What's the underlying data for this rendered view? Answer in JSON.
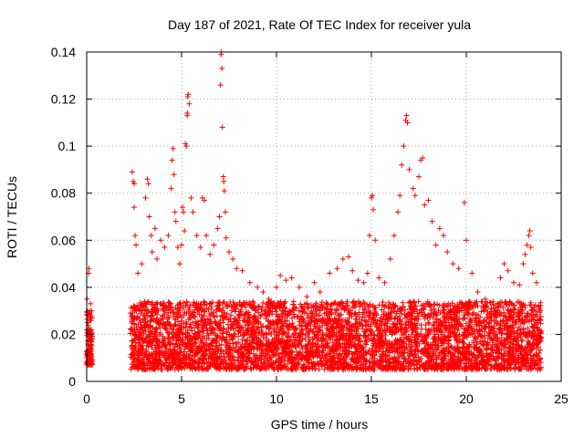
{
  "chart_data": {
    "type": "scatter",
    "title": "Day 187 of 2021, Rate Of TEC Index for receiver yula",
    "xlabel": "GPS time / hours",
    "ylabel": "ROTI / TECUs",
    "xlim": [
      0,
      25
    ],
    "ylim": [
      0,
      0.14
    ],
    "x_ticks": [
      0,
      5,
      10,
      15,
      20,
      25
    ],
    "x_tick_labels": [
      "0",
      "5",
      "10",
      "15",
      "20",
      "25"
    ],
    "y_ticks": [
      0,
      0.02,
      0.04,
      0.06,
      0.08,
      0.1,
      0.12,
      0.14
    ],
    "y_tick_labels": [
      "0",
      "0.02",
      "0.04",
      "0.06",
      "0.08",
      "0.1",
      "0.12",
      "0.14"
    ],
    "grid": true,
    "marker": "+",
    "color": "#ff0000",
    "legend": "none",
    "series": [
      {
        "points": [
          [
            0.02,
            0.035
          ],
          [
            0.05,
            0.028
          ],
          [
            0.1,
            0.046
          ],
          [
            0.12,
            0.048
          ],
          [
            0.15,
            0.022
          ],
          [
            0.18,
            0.03
          ],
          [
            0.2,
            0.033
          ],
          [
            0.25,
            0.02
          ],
          [
            2.4,
            0.089
          ],
          [
            2.45,
            0.085
          ],
          [
            2.5,
            0.084
          ],
          [
            2.5,
            0.074
          ],
          [
            2.55,
            0.062
          ],
          [
            2.6,
            0.058
          ],
          [
            2.7,
            0.046
          ],
          [
            2.9,
            0.05
          ],
          [
            3.1,
            0.078
          ],
          [
            3.2,
            0.086
          ],
          [
            3.25,
            0.084
          ],
          [
            3.3,
            0.07
          ],
          [
            3.4,
            0.062
          ],
          [
            3.45,
            0.055
          ],
          [
            3.6,
            0.065
          ],
          [
            3.7,
            0.052
          ],
          [
            3.9,
            0.06
          ],
          [
            4.1,
            0.057
          ],
          [
            4.3,
            0.062
          ],
          [
            4.45,
            0.082
          ],
          [
            4.5,
            0.094
          ],
          [
            4.55,
            0.099
          ],
          [
            4.6,
            0.088
          ],
          [
            4.65,
            0.072
          ],
          [
            4.7,
            0.068
          ],
          [
            4.8,
            0.057
          ],
          [
            4.9,
            0.05
          ],
          [
            5.0,
            0.058
          ],
          [
            5.05,
            0.074
          ],
          [
            5.1,
            0.072
          ],
          [
            5.15,
            0.064
          ],
          [
            5.2,
            0.101
          ],
          [
            5.25,
            0.1
          ],
          [
            5.3,
            0.113
          ],
          [
            5.3,
            0.114
          ],
          [
            5.32,
            0.121
          ],
          [
            5.35,
            0.122
          ],
          [
            5.4,
            0.118
          ],
          [
            5.5,
            0.078
          ],
          [
            5.6,
            0.072
          ],
          [
            5.8,
            0.062
          ],
          [
            6.0,
            0.057
          ],
          [
            6.1,
            0.078
          ],
          [
            6.2,
            0.077
          ],
          [
            6.3,
            0.062
          ],
          [
            6.5,
            0.054
          ],
          [
            6.7,
            0.058
          ],
          [
            6.9,
            0.065
          ],
          [
            7.0,
            0.07
          ],
          [
            7.05,
            0.126
          ],
          [
            7.08,
            0.139
          ],
          [
            7.1,
            0.14
          ],
          [
            7.12,
            0.133
          ],
          [
            7.15,
            0.108
          ],
          [
            7.2,
            0.087
          ],
          [
            7.22,
            0.085
          ],
          [
            7.25,
            0.081
          ],
          [
            7.3,
            0.072
          ],
          [
            7.35,
            0.061
          ],
          [
            7.5,
            0.055
          ],
          [
            7.7,
            0.052
          ],
          [
            7.9,
            0.048
          ],
          [
            8.2,
            0.047
          ],
          [
            8.6,
            0.042
          ],
          [
            9.0,
            0.04
          ],
          [
            9.3,
            0.038
          ],
          [
            9.6,
            0.035
          ],
          [
            10.0,
            0.04
          ],
          [
            10.2,
            0.045
          ],
          [
            10.5,
            0.043
          ],
          [
            10.8,
            0.044
          ],
          [
            11.2,
            0.04
          ],
          [
            11.6,
            0.036
          ],
          [
            12.0,
            0.042
          ],
          [
            12.3,
            0.038
          ],
          [
            12.8,
            0.046
          ],
          [
            13.2,
            0.048
          ],
          [
            13.5,
            0.052
          ],
          [
            13.8,
            0.053
          ],
          [
            14.0,
            0.047
          ],
          [
            14.3,
            0.043
          ],
          [
            14.6,
            0.042
          ],
          [
            14.8,
            0.046
          ],
          [
            14.9,
            0.062
          ],
          [
            15.0,
            0.078
          ],
          [
            15.05,
            0.079
          ],
          [
            15.1,
            0.073
          ],
          [
            15.2,
            0.06
          ],
          [
            15.4,
            0.044
          ],
          [
            15.7,
            0.042
          ],
          [
            16.0,
            0.052
          ],
          [
            16.2,
            0.062
          ],
          [
            16.4,
            0.072
          ],
          [
            16.5,
            0.079
          ],
          [
            16.6,
            0.092
          ],
          [
            16.7,
            0.1
          ],
          [
            16.8,
            0.111
          ],
          [
            16.85,
            0.113
          ],
          [
            16.9,
            0.11
          ],
          [
            17.0,
            0.09
          ],
          [
            17.2,
            0.082
          ],
          [
            17.3,
            0.079
          ],
          [
            17.5,
            0.087
          ],
          [
            17.6,
            0.094
          ],
          [
            17.7,
            0.095
          ],
          [
            17.8,
            0.075
          ],
          [
            18.0,
            0.077
          ],
          [
            18.2,
            0.068
          ],
          [
            18.4,
            0.058
          ],
          [
            18.6,
            0.065
          ],
          [
            18.8,
            0.062
          ],
          [
            19.0,
            0.055
          ],
          [
            19.3,
            0.05
          ],
          [
            19.6,
            0.048
          ],
          [
            19.9,
            0.076
          ],
          [
            20.0,
            0.06
          ],
          [
            20.3,
            0.046
          ],
          [
            20.6,
            0.038
          ],
          [
            21.0,
            0.035
          ],
          [
            21.4,
            0.034
          ],
          [
            21.8,
            0.044
          ],
          [
            22.0,
            0.05
          ],
          [
            22.2,
            0.047
          ],
          [
            22.5,
            0.042
          ],
          [
            22.8,
            0.041
          ],
          [
            23.0,
            0.05
          ],
          [
            23.1,
            0.054
          ],
          [
            23.2,
            0.058
          ],
          [
            23.3,
            0.062
          ],
          [
            23.35,
            0.064
          ],
          [
            23.4,
            0.057
          ],
          [
            23.5,
            0.046
          ],
          [
            23.7,
            0.042
          ],
          [
            23.9,
            0.03
          ]
        ]
      }
    ],
    "dense_band": {
      "segments": [
        {
          "x": [
            0.0,
            0.3
          ],
          "y_low": 0.007,
          "y_high": 0.03
        },
        {
          "x": [
            2.3,
            23.95
          ],
          "y_low": 0.005,
          "y_high": 0.034
        }
      ]
    }
  }
}
